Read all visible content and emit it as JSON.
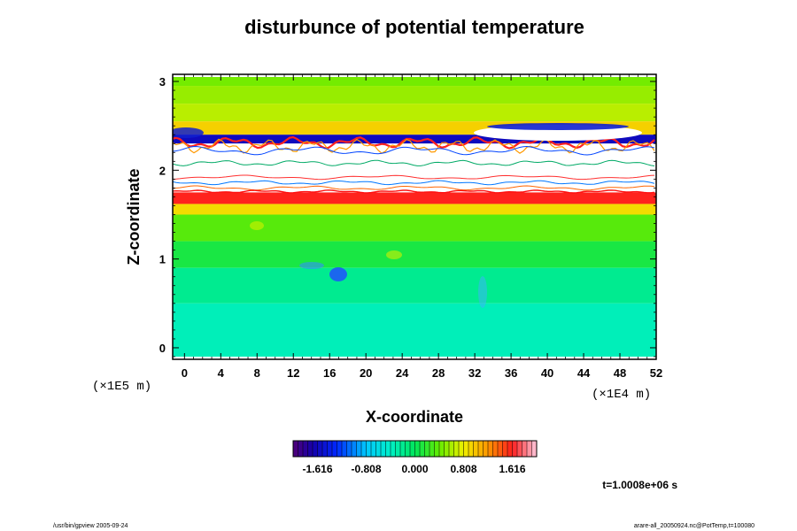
{
  "chart_data": {
    "type": "heatmap",
    "title": "disturbunce of potential temperature",
    "xlabel": "X-coordinate",
    "ylabel": "Z-coordinate",
    "x_unit": "(×1E4 m)",
    "y_unit": "(×1E5 m)",
    "xlim": [
      0,
      52
    ],
    "ylim": [
      0,
      3
    ],
    "x_ticks": [
      "0",
      "4",
      "8",
      "12",
      "16",
      "20",
      "24",
      "28",
      "32",
      "36",
      "40",
      "44",
      "48",
      "52"
    ],
    "y_ticks": [
      "0",
      "1",
      "2",
      "3"
    ],
    "colorbar": {
      "min": -2.02,
      "max": 2.02,
      "ticks": [
        "-1.616",
        "-0.808",
        "0.000",
        "0.808",
        "1.616"
      ],
      "tick_values": [
        -1.616,
        -0.808,
        0.0,
        0.808,
        1.616
      ]
    },
    "time_label": "t=1.0008e+06 s",
    "field_rows": [
      {
        "z": [
          2.95,
          3.05
        ],
        "value": 0.45
      },
      {
        "z": [
          2.75,
          2.95
        ],
        "value": 0.55
      },
      {
        "z": [
          2.55,
          2.75
        ],
        "value": 0.65
      },
      {
        "z": [
          2.4,
          2.55
        ],
        "value": 0.95
      },
      {
        "z": [
          2.3,
          2.4
        ],
        "value": -1.6
      },
      {
        "z": [
          1.75,
          2.3
        ],
        "value": 2.4
      },
      {
        "z": [
          1.62,
          1.75
        ],
        "value": 1.6
      },
      {
        "z": [
          1.5,
          1.62
        ],
        "value": 0.9
      },
      {
        "z": [
          1.2,
          1.5
        ],
        "value": 0.35
      },
      {
        "z": [
          0.9,
          1.2
        ],
        "value": 0.1
      },
      {
        "z": [
          0.5,
          0.9
        ],
        "value": -0.2
      },
      {
        "z": [
          -0.1,
          0.5
        ],
        "value": -0.35
      }
    ]
  },
  "footer": {
    "left": "/usr/bin/gpview 2005-09-24",
    "right": "arare-all_20050924.nc@PotTemp,t=100080"
  },
  "colors": {
    "background": "#ffffff",
    "axis": "#000000"
  }
}
